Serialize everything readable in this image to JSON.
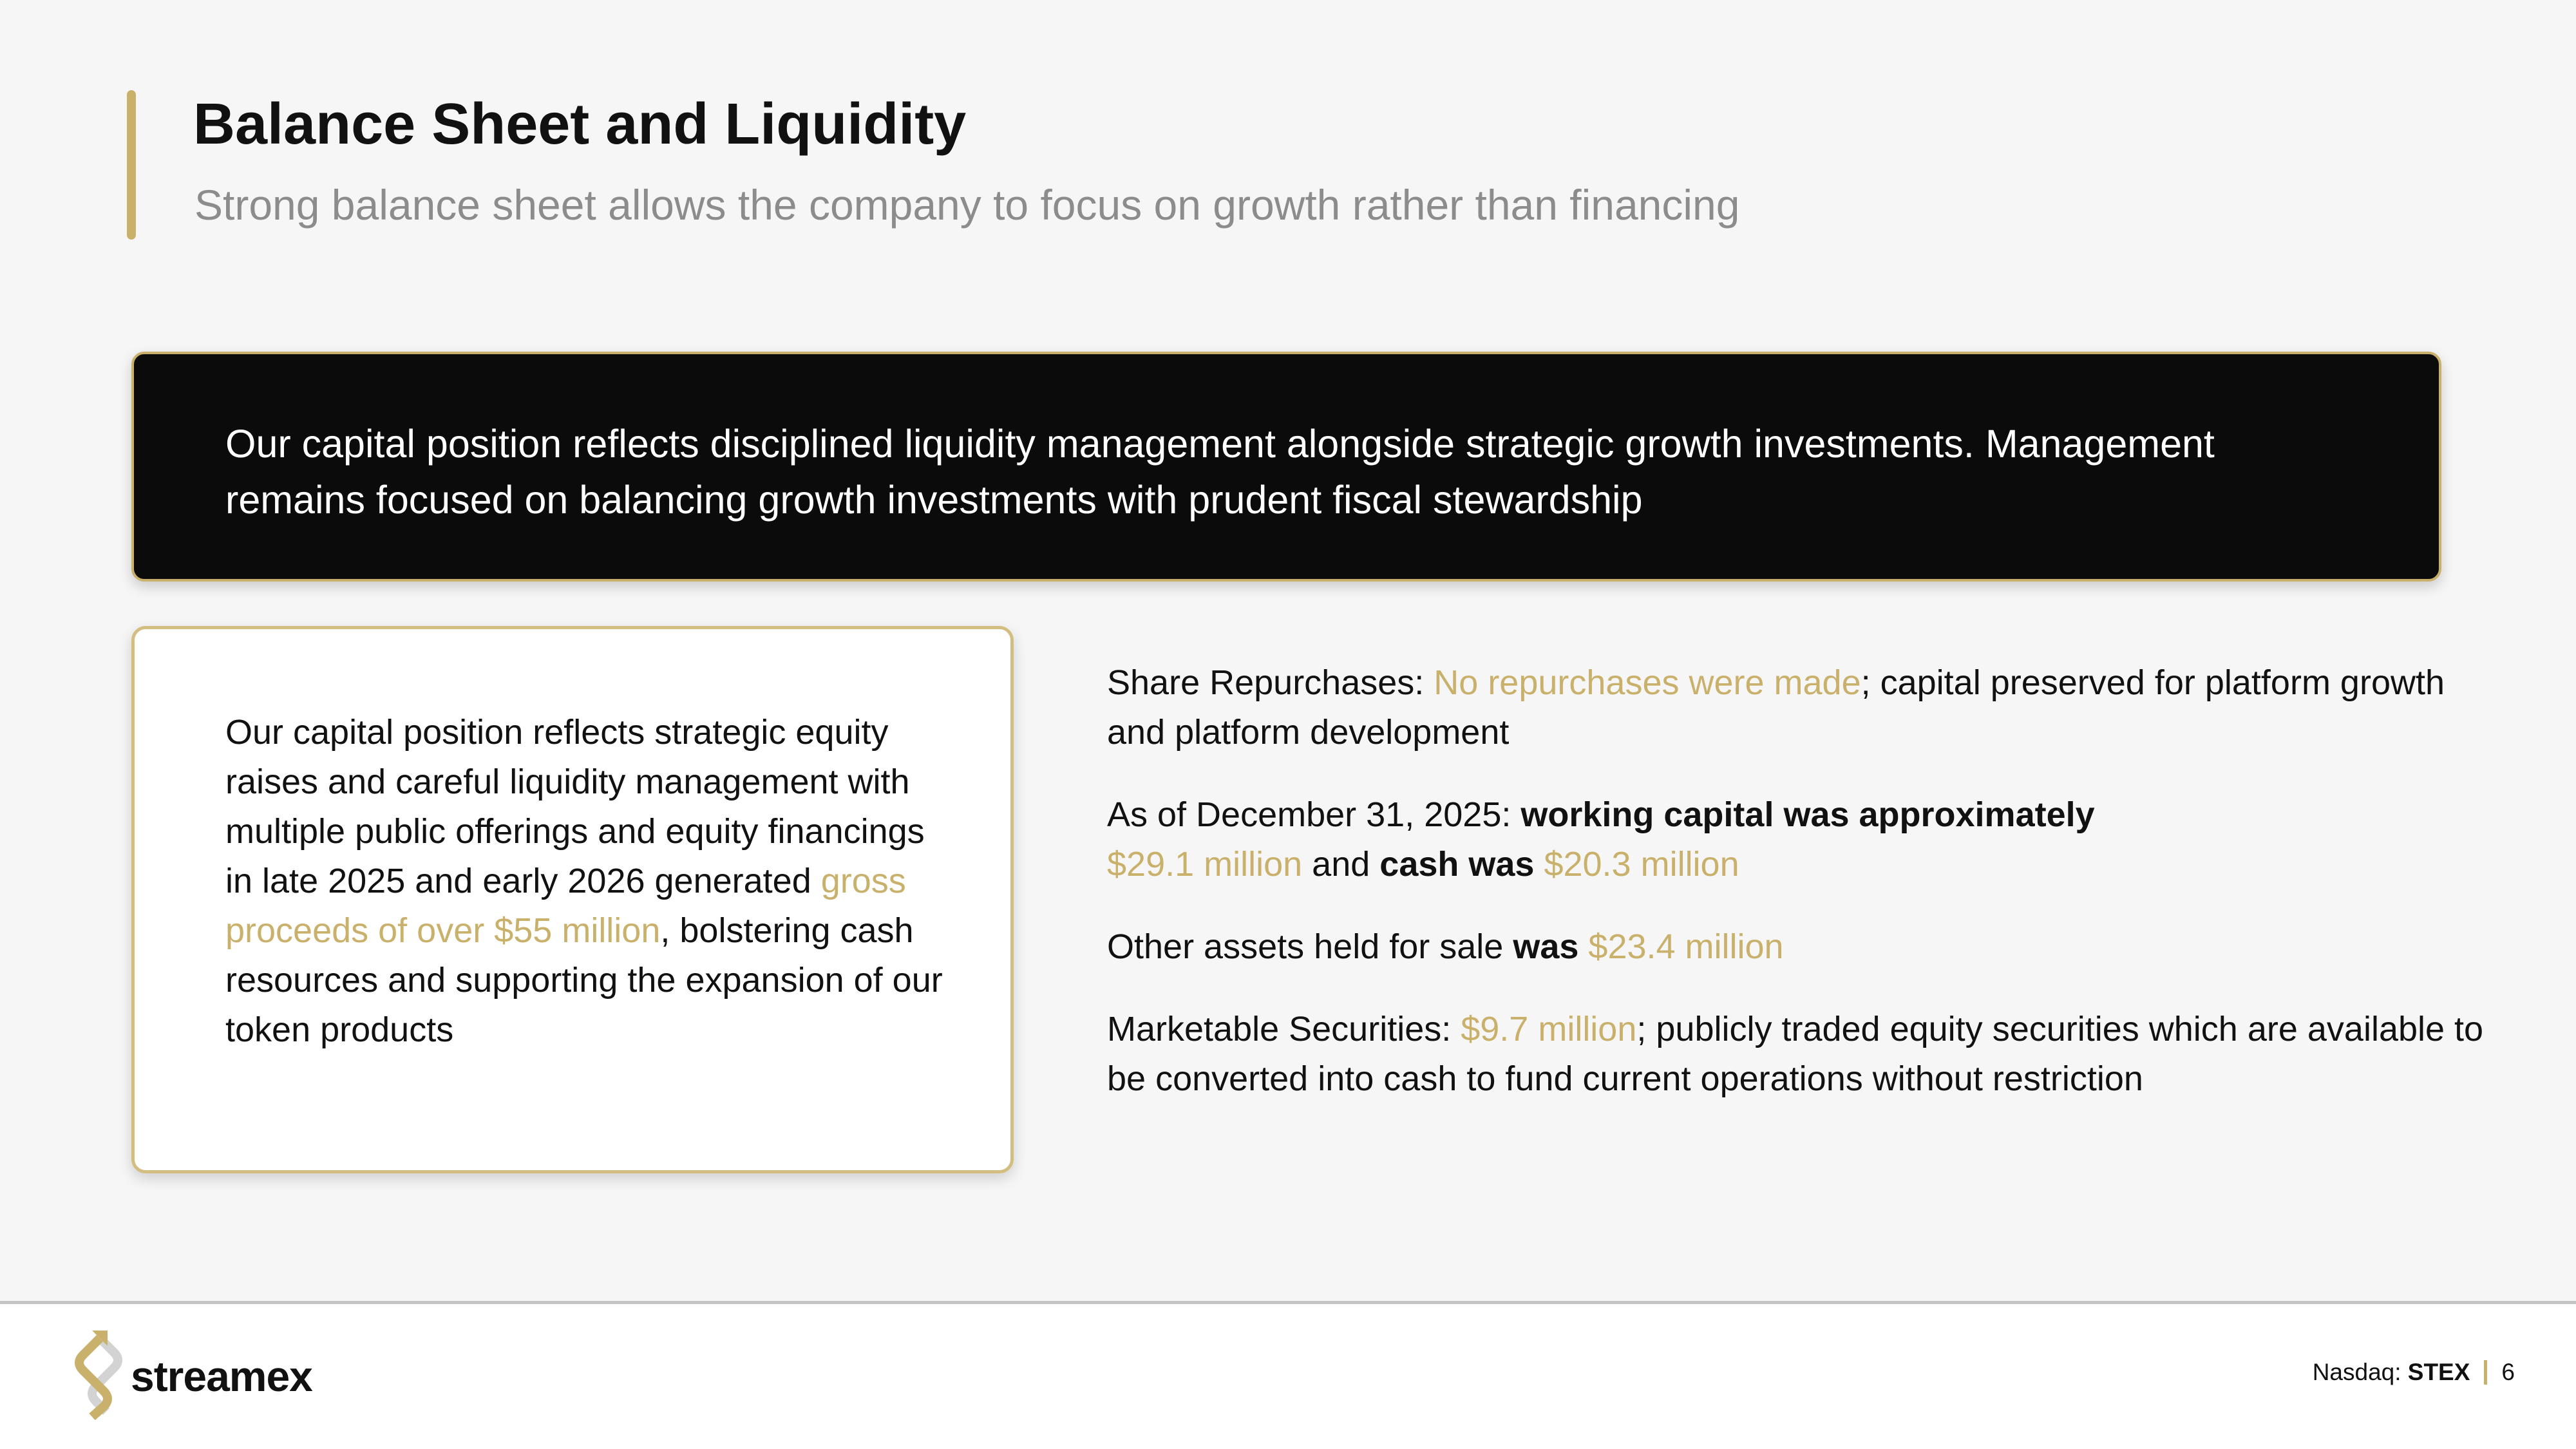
{
  "header": {
    "title": "Balance Sheet and Liquidity",
    "subtitle": "Strong balance sheet allows the company to focus on growth rather than financing"
  },
  "banner": {
    "text": "Our capital position reflects disciplined liquidity management alongside strategic growth investments. Management remains focused on balancing growth investments with prudent fiscal stewardship"
  },
  "card": {
    "text_1": "Our capital position reflects strategic equity raises and careful liquidity management with multiple public offerings and equity financings in late 2025 and early 2026 generated ",
    "highlight": "gross proceeds of over $55 million",
    "text_2": ", bolstering cash resources and supporting the expansion of our token products"
  },
  "points": {
    "repurchases": {
      "label": "Share Repurchases: ",
      "highlight": "No repurchases were made",
      "rest": "; capital preserved for platform growth and platform development"
    },
    "working_capital": {
      "prefix": "As of December 31, 2025: ",
      "bold_1": "working capital was approximately",
      "value_1": "$29.1 million",
      "mid": " and ",
      "bold_2": "cash was",
      "value_2": "$20.3 million"
    },
    "assets": {
      "prefix": "Other assets held for sale ",
      "bold": "was",
      "value": "$23.4 million"
    },
    "securities": {
      "label": "Marketable Securities: ",
      "value": "$9.7 million",
      "rest": "; publicly traded equity securities which are available to be converted into cash to fund current operations without restriction"
    }
  },
  "footer": {
    "logo_text": "streamex",
    "exchange": "Nasdaq: ",
    "ticker": "STEX",
    "page_number": "6"
  },
  "colors": {
    "accent": "#c9b06b",
    "banner_bg": "#0b0b0b",
    "background": "#f6f6f6"
  }
}
